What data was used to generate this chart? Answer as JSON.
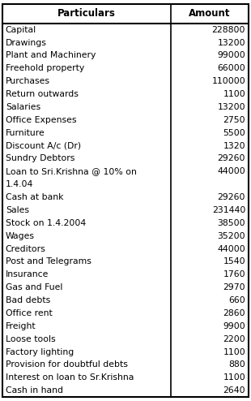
{
  "headers": [
    "Particulars",
    "Amount"
  ],
  "rows": [
    [
      "Capital",
      "228800"
    ],
    [
      "Drawings",
      "13200"
    ],
    [
      "Plant and Machinery",
      "99000"
    ],
    [
      "Freehold property",
      "66000"
    ],
    [
      "Purchases",
      "110000"
    ],
    [
      "Return outwards",
      "1100"
    ],
    [
      "Salaries",
      "13200"
    ],
    [
      "Office Expenses",
      "2750"
    ],
    [
      "Furniture",
      "5500"
    ],
    [
      "Discount A/c (Dr)",
      "1320"
    ],
    [
      "Sundry Debtors",
      "29260"
    ],
    [
      "Loan to Sri.Krishna @ 10% on",
      "44000"
    ],
    [
      "1.4.04",
      ""
    ],
    [
      "Cash at bank",
      "29260"
    ],
    [
      "Sales",
      "231440"
    ],
    [
      "Stock on 1.4.2004",
      "38500"
    ],
    [
      "Wages",
      "35200"
    ],
    [
      "Creditors",
      "44000"
    ],
    [
      "Post and Telegrams",
      "1540"
    ],
    [
      "Insurance",
      "1760"
    ],
    [
      "Gas and Fuel",
      "2970"
    ],
    [
      "Bad debts",
      "660"
    ],
    [
      "Office rent",
      "2860"
    ],
    [
      "Freight",
      "9900"
    ],
    [
      "Loose tools",
      "2200"
    ],
    [
      "Factory lighting",
      "1100"
    ],
    [
      "Provision for doubtful debts",
      "880"
    ],
    [
      "Interest on loan to Sr.Krishna",
      "1100"
    ],
    [
      "Cash in hand",
      "2640"
    ]
  ],
  "col_split": 0.685,
  "border_color": "#000000",
  "bg_color": "#ffffff",
  "text_color": "#000000",
  "font_size": 7.8,
  "header_font_size": 8.5,
  "fig_width": 3.1,
  "fig_height": 4.94,
  "dpi": 100
}
